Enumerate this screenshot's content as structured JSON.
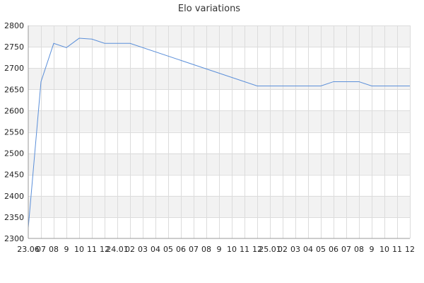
{
  "chart_data": {
    "type": "line",
    "title": "Elo variations",
    "xlabel": "",
    "ylabel": "",
    "x": [
      "23.06",
      "07",
      "08",
      "9",
      "10",
      "11",
      "12",
      "24.01",
      "02",
      "03",
      "04",
      "05",
      "06",
      "07",
      "08",
      "9",
      "10",
      "11",
      "12",
      "25.01",
      "02",
      "03",
      "04",
      "05",
      "06",
      "07",
      "08",
      "9",
      "10",
      "11",
      "12"
    ],
    "series": [
      {
        "values": [
          2325,
          2668,
          2758,
          2748,
          2770,
          2768,
          2758,
          2758,
          2758,
          null,
          null,
          null,
          null,
          null,
          null,
          null,
          null,
          null,
          2658,
          2658,
          2658,
          2658,
          2658,
          2658,
          2668,
          2668,
          2668,
          2658,
          2658,
          2658,
          2658
        ]
      }
    ],
    "ylim": [
      2300,
      2800
    ],
    "yticks": [
      2300,
      2350,
      2400,
      2450,
      2500,
      2550,
      2600,
      2650,
      2700,
      2750,
      2800
    ],
    "grid": true,
    "legend": "none",
    "colors": {
      "line": "#5b8fd9",
      "band": "#f2f2f2",
      "grid": "#dcdcdc",
      "axis": "#999999"
    }
  }
}
